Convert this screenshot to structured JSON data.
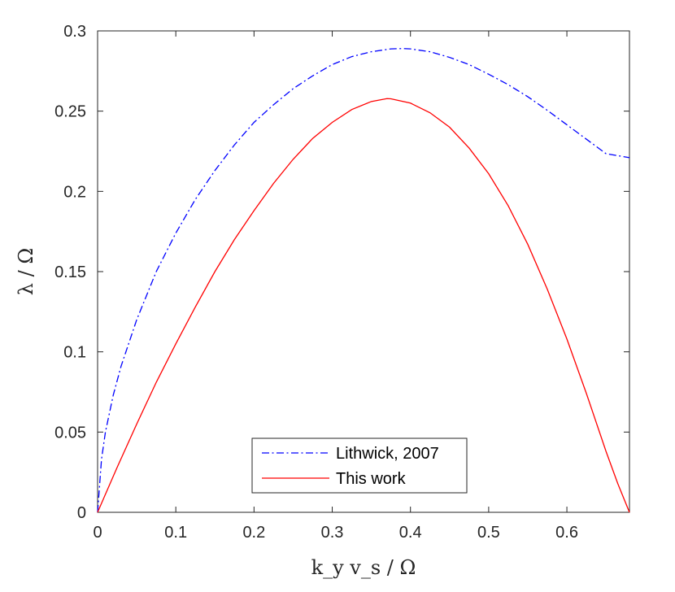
{
  "chart_data": {
    "type": "line",
    "title": "",
    "xlabel": "k_y v_s / Ω",
    "ylabel": "λ / Ω",
    "xlim": [
      0,
      0.68
    ],
    "ylim": [
      0,
      0.3
    ],
    "xticks": [
      0,
      0.1,
      0.2,
      0.3,
      0.4,
      0.5,
      0.6
    ],
    "xtick_labels": [
      "0",
      "0.1",
      "0.2",
      "0.3",
      "0.4",
      "0.5",
      "0.6"
    ],
    "yticks": [
      0,
      0.05,
      0.1,
      0.15,
      0.2,
      0.25,
      0.3
    ],
    "ytick_labels": [
      "0",
      "0.05",
      "0.1",
      "0.15",
      "0.2",
      "0.25",
      "0.3"
    ],
    "grid": false,
    "legend_position": "bottom-center",
    "series": [
      {
        "name": "Lithwick, 2007",
        "color": "#0000ff",
        "line_style": "dash-dot",
        "x": [
          0,
          0.005,
          0.01,
          0.02,
          0.03,
          0.05,
          0.075,
          0.1,
          0.125,
          0.15,
          0.175,
          0.2,
          0.225,
          0.25,
          0.275,
          0.3,
          0.325,
          0.35,
          0.375,
          0.39,
          0.4,
          0.425,
          0.45,
          0.475,
          0.5,
          0.525,
          0.55,
          0.575,
          0.6,
          0.625,
          0.65,
          0.68
        ],
        "y": [
          0,
          0.033,
          0.05,
          0.073,
          0.091,
          0.12,
          0.15,
          0.174,
          0.195,
          0.213,
          0.229,
          0.243,
          0.254,
          0.264,
          0.272,
          0.279,
          0.284,
          0.287,
          0.2888,
          0.289,
          0.2888,
          0.287,
          0.2835,
          0.279,
          0.273,
          0.2665,
          0.259,
          0.2505,
          0.2415,
          0.2325,
          0.2235,
          0.221
        ]
      },
      {
        "name": "This work",
        "color": "#ff0000",
        "line_style": "solid",
        "x": [
          0,
          0.025,
          0.05,
          0.075,
          0.1,
          0.125,
          0.15,
          0.175,
          0.2,
          0.225,
          0.25,
          0.275,
          0.3,
          0.325,
          0.35,
          0.37,
          0.375,
          0.4,
          0.425,
          0.45,
          0.475,
          0.5,
          0.525,
          0.55,
          0.575,
          0.6,
          0.625,
          0.65,
          0.665,
          0.68
        ],
        "y": [
          0,
          0.028,
          0.055,
          0.081,
          0.105,
          0.128,
          0.15,
          0.17,
          0.188,
          0.205,
          0.22,
          0.233,
          0.243,
          0.251,
          0.256,
          0.2578,
          0.2577,
          0.255,
          0.249,
          0.24,
          0.227,
          0.211,
          0.191,
          0.167,
          0.139,
          0.108,
          0.074,
          0.038,
          0.018,
          0.0
        ]
      }
    ]
  }
}
